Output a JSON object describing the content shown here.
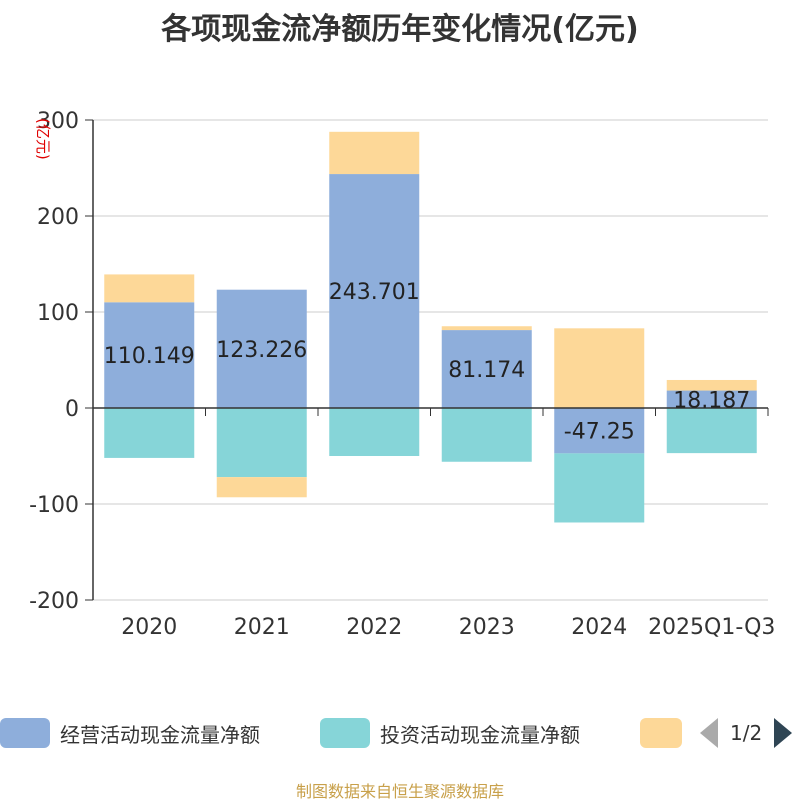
{
  "chart_data": {
    "type": "bar",
    "stacked": true,
    "title": "各项现金流净额历年变化情况(亿元)",
    "ylabel": "(亿元)",
    "ylim": [
      -200,
      300
    ],
    "yticks": [
      -200,
      -100,
      0,
      100,
      200,
      300
    ],
    "grid": true,
    "categories": [
      "2020",
      "2021",
      "2022",
      "2023",
      "2024",
      "2025Q1-Q3"
    ],
    "series": [
      {
        "name": "经营活动现金流量净额",
        "color": "#8eaedb",
        "values": [
          110.149,
          123.226,
          243.701,
          81.174,
          -47.25,
          18.187
        ],
        "labels": [
          "110.149",
          "123.226",
          "243.701",
          "81.174",
          "-47.25",
          "18.187"
        ]
      },
      {
        "name": "投资活动现金流量净额",
        "color": "#86d5d8",
        "values": [
          -52,
          -72,
          -50,
          -56,
          -72,
          -47
        ]
      },
      {
        "name": "",
        "color": "#fdd898",
        "values": [
          29,
          -21,
          44,
          4,
          83,
          11
        ]
      }
    ],
    "legend_position": "bottom",
    "legend_page": "1/2"
  },
  "source": "制图数据来自恒生聚源数据库"
}
